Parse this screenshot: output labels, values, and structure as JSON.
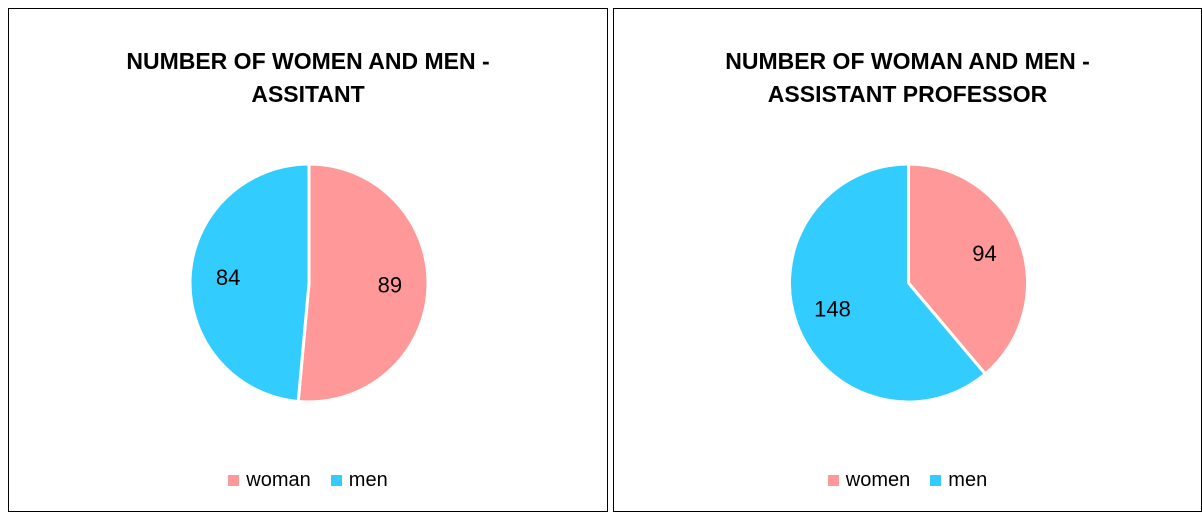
{
  "chart_data": [
    {
      "type": "pie",
      "title": "NUMBER OF WOMEN AND MEN - ASSITANT",
      "categories": [
        "woman",
        "men"
      ],
      "values": [
        89,
        84
      ],
      "colors": [
        "#FF9999",
        "#33CCFF"
      ],
      "legend": "bottom"
    },
    {
      "type": "pie",
      "title": "NUMBER OF WOMAN AND MEN - ASSISTANT PROFESSOR",
      "categories": [
        "women",
        "men"
      ],
      "values": [
        94,
        148
      ],
      "colors": [
        "#FF9999",
        "#33CCFF"
      ],
      "legend": "bottom"
    }
  ]
}
